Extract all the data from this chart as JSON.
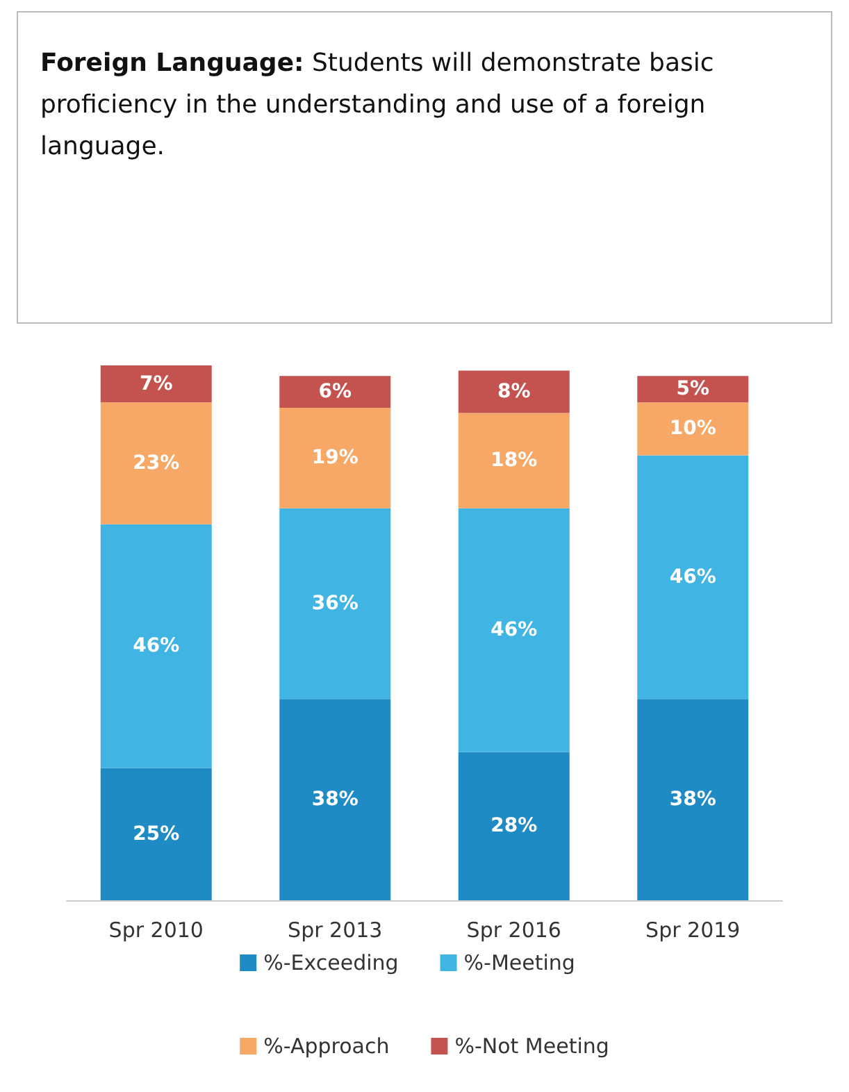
{
  "chart_data": {
    "type": "bar",
    "title": "Foreign Language: Students will demonstrate basic proficiency in the understanding and use of a foreign language.",
    "categories": [
      "Spr 2010",
      "Spr 2013",
      "Spr 2016",
      "Spr 2019"
    ],
    "series": [
      {
        "name": "%-Exceeding",
        "color": "#1f8bc4",
        "values": [
          25,
          38,
          28,
          38
        ],
        "value_labels": [
          "25%",
          "38%",
          "28%",
          "38%"
        ]
      },
      {
        "name": "%-Meeting",
        "color": "#40b4e2",
        "values": [
          46,
          36,
          46,
          46
        ],
        "value_labels": [
          "46%",
          "36%",
          "46%",
          "46%"
        ]
      },
      {
        "name": "%-Approach",
        "color": "#f7a866",
        "values": [
          23,
          19,
          18,
          10
        ],
        "value_labels": [
          "23%",
          "19%",
          "18%",
          "10%"
        ]
      },
      {
        "name": "%-Not Meeting",
        "color": "#c4524f",
        "values": [
          7,
          6,
          8,
          5
        ],
        "value_labels": [
          "7%",
          "6%",
          "8%",
          "5%"
        ]
      }
    ],
    "stacked": true,
    "legend": "bottom",
    "tick_labels": "x"
  }
}
